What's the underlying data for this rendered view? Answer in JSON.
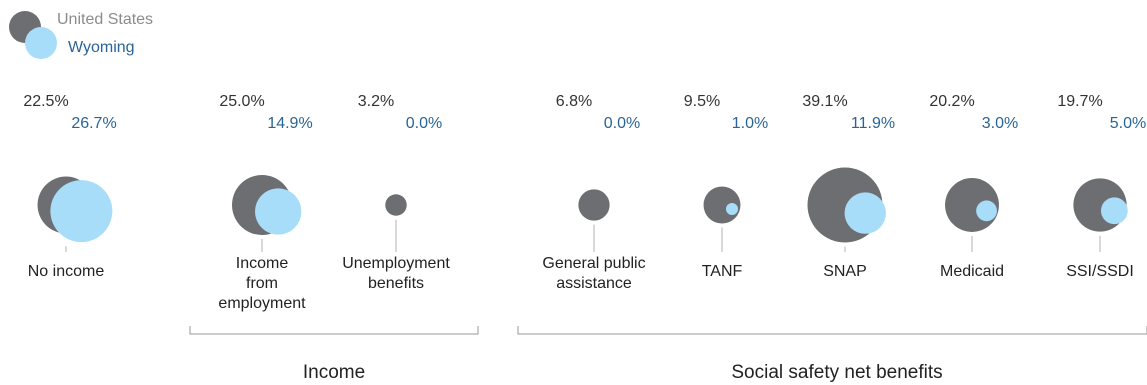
{
  "chart_data": {
    "type": "bubble",
    "title": "",
    "legend": {
      "placement": "top-left",
      "entries": [
        {
          "name": "United States",
          "color": "#6d6e71",
          "text_color": "#8c8c8c"
        },
        {
          "name": "Wyoming",
          "color": "#a7ddf8",
          "text_color": "#2a6496"
        }
      ]
    },
    "categories": [
      {
        "label": "No income",
        "lines": [
          "No income"
        ],
        "group": "",
        "us": 22.5,
        "wy": 26.7,
        "us_label": "22.5%",
        "wy_label": "26.7%"
      },
      {
        "label": "Income from employment",
        "lines": [
          "Income",
          "from",
          "employment"
        ],
        "group": "Income",
        "us": 25.0,
        "wy": 14.9,
        "us_label": "25.0%",
        "wy_label": "14.9%"
      },
      {
        "label": "Unemployment benefits",
        "lines": [
          "Unemployment",
          "benefits"
        ],
        "group": "Income",
        "us": 3.2,
        "wy": 0.0,
        "us_label": "3.2%",
        "wy_label": "0.0%"
      },
      {
        "label": "General public assistance",
        "lines": [
          "General public",
          "assistance"
        ],
        "group": "Social safety net benefits",
        "us": 6.8,
        "wy": 0.0,
        "us_label": "6.8%",
        "wy_label": "0.0%"
      },
      {
        "label": "TANF",
        "lines": [
          "TANF"
        ],
        "group": "Social safety net benefits",
        "us": 9.5,
        "wy": 1.0,
        "us_label": "9.5%",
        "wy_label": "1.0%"
      },
      {
        "label": "SNAP",
        "lines": [
          "SNAP"
        ],
        "group": "Social safety net benefits",
        "us": 39.1,
        "wy": 11.9,
        "us_label": "39.1%",
        "wy_label": "11.9%"
      },
      {
        "label": "Medicaid",
        "lines": [
          "Medicaid"
        ],
        "group": "Social safety net benefits",
        "us": 20.2,
        "wy": 3.0,
        "us_label": "20.2%",
        "wy_label": "3.0%"
      },
      {
        "label": "SSI/SSDI",
        "lines": [
          "SSI/SSDI"
        ],
        "group": "Social safety net benefits",
        "us": 19.7,
        "wy": 5.0,
        "us_label": "19.7%",
        "wy_label": "5.0%"
      }
    ],
    "groups": [
      {
        "name": "Income"
      },
      {
        "name": "Social safety net benefits"
      }
    ]
  }
}
